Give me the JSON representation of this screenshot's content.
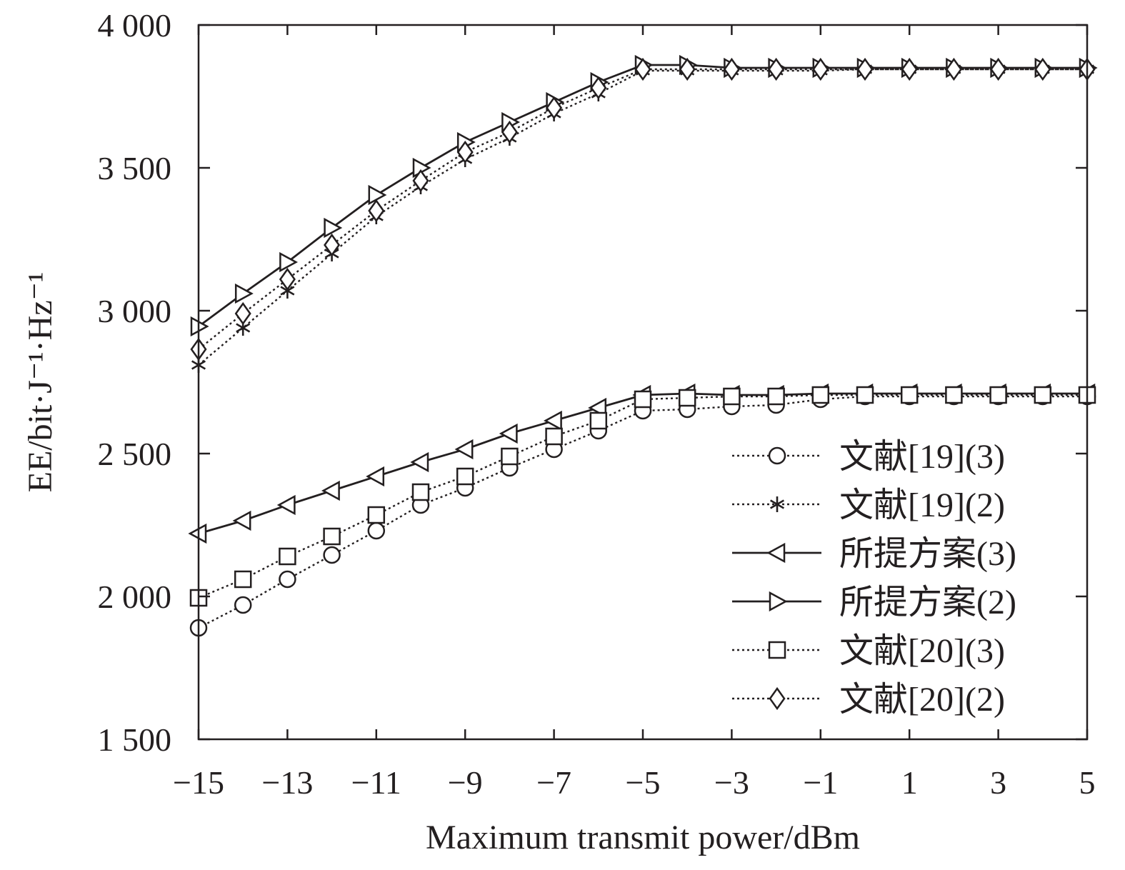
{
  "chart_data": {
    "type": "line",
    "xlabel": "Maximum transmit power/dBm",
    "ylabel": "EE/bit·J⁻¹·Hz⁻¹",
    "xlim": [
      -15,
      5
    ],
    "ylim": [
      1500,
      4000
    ],
    "xticks": [
      -15,
      -13,
      -11,
      -9,
      -7,
      -5,
      -3,
      -1,
      1,
      3,
      5
    ],
    "xtick_labels": [
      "−15",
      "−13",
      "−11",
      "−9",
      "−7",
      "−5",
      "−3",
      "−1",
      "1",
      "3",
      "5"
    ],
    "yticks": [
      1500,
      2000,
      2500,
      3000,
      3500,
      4000
    ],
    "ytick_labels": [
      "1 500",
      "2 000",
      "2 500",
      "3 000",
      "3 500",
      "4 000"
    ],
    "grid": false,
    "legend_position": "bottom-right",
    "x": [
      -15,
      -14,
      -13,
      -12,
      -11,
      -10,
      -9,
      -8,
      -7,
      -6,
      -5,
      -4,
      -3,
      -2,
      -1,
      0,
      1,
      2,
      3,
      4,
      5
    ],
    "series": [
      {
        "name": "文献[19](3)",
        "marker": "circle",
        "line": "dotted",
        "values": [
          1890,
          1970,
          2060,
          2145,
          2230,
          2320,
          2380,
          2450,
          2515,
          2580,
          2650,
          2655,
          2665,
          2670,
          2690,
          2700,
          2700,
          2700,
          2700,
          2700,
          2700
        ]
      },
      {
        "name": "文献[19](2)",
        "marker": "asterisk",
        "line": "dotted",
        "values": [
          2810,
          2940,
          3070,
          3200,
          3330,
          3435,
          3530,
          3605,
          3690,
          3760,
          3840,
          3840,
          3840,
          3840,
          3840,
          3845,
          3845,
          3845,
          3845,
          3845,
          3845
        ]
      },
      {
        "name": "所提方案(3)",
        "marker": "triangle-left",
        "line": "solid",
        "values": [
          2220,
          2265,
          2320,
          2370,
          2420,
          2470,
          2515,
          2570,
          2615,
          2660,
          2705,
          2710,
          2705,
          2705,
          2710,
          2710,
          2710,
          2710,
          2710,
          2710,
          2710
        ]
      },
      {
        "name": "所提方案(2)",
        "marker": "triangle-right",
        "line": "solid",
        "values": [
          2945,
          3060,
          3170,
          3290,
          3405,
          3500,
          3590,
          3660,
          3730,
          3800,
          3860,
          3860,
          3850,
          3850,
          3850,
          3850,
          3850,
          3850,
          3850,
          3850,
          3850
        ]
      },
      {
        "name": "文献[20](3)",
        "marker": "square",
        "line": "dotted",
        "values": [
          1995,
          2060,
          2140,
          2210,
          2285,
          2365,
          2420,
          2490,
          2560,
          2615,
          2690,
          2695,
          2700,
          2700,
          2705,
          2705,
          2705,
          2705,
          2705,
          2705,
          2705
        ]
      },
      {
        "name": "文献[20](2)",
        "marker": "diamond",
        "line": "dotted",
        "values": [
          2865,
          2990,
          3110,
          3230,
          3350,
          3455,
          3555,
          3625,
          3710,
          3780,
          3845,
          3845,
          3845,
          3845,
          3845,
          3845,
          3845,
          3845,
          3845,
          3845,
          3845
        ]
      }
    ]
  }
}
